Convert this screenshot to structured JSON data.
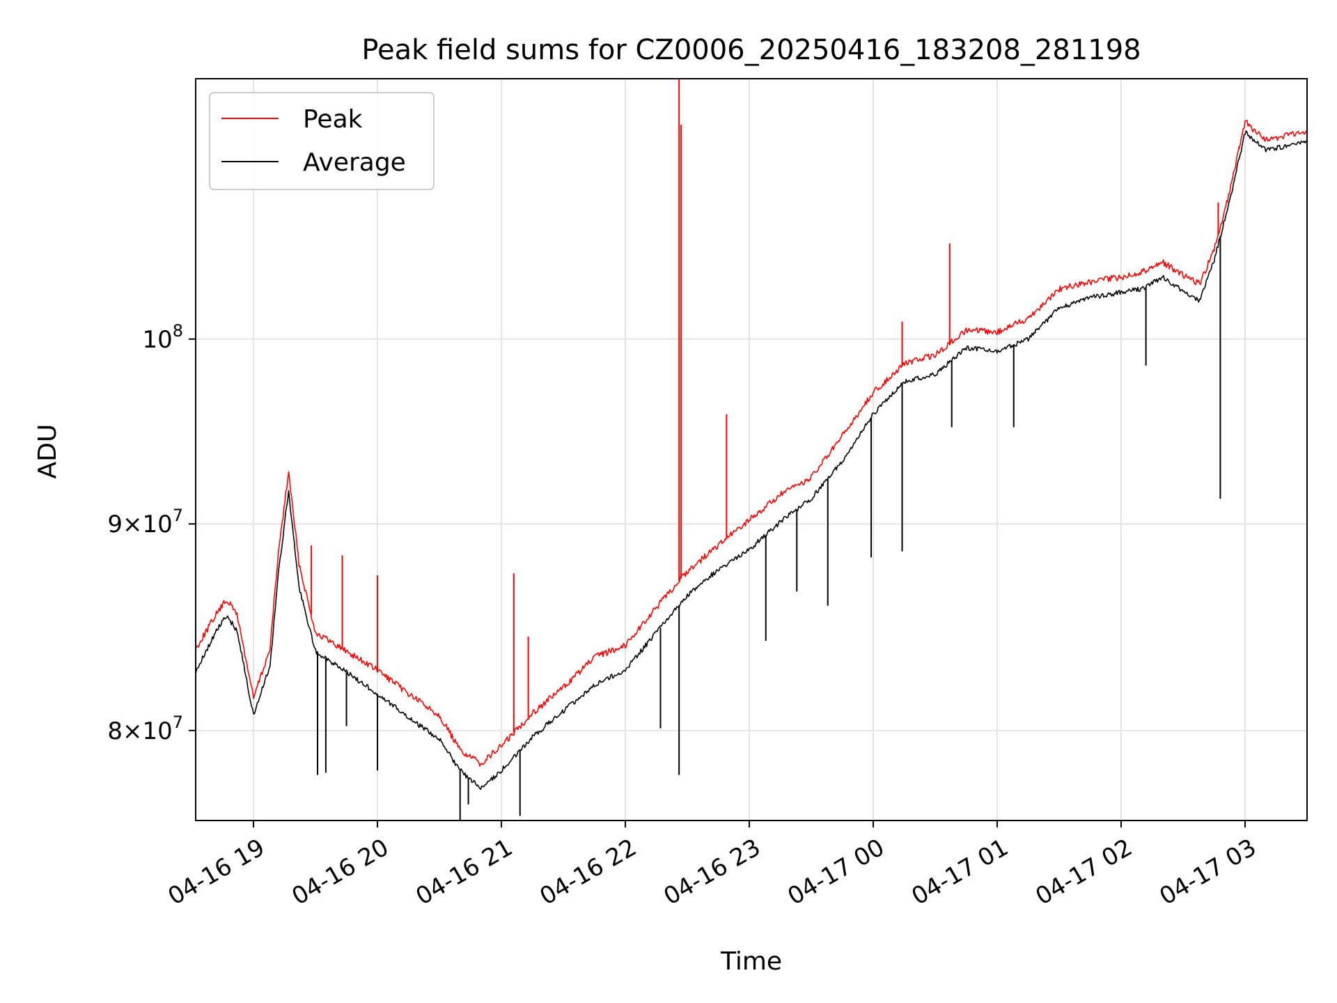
{
  "chart_data": {
    "type": "line",
    "title": "Peak field sums for CZ0006_20250416_183208_281198",
    "xlabel": "Time",
    "ylabel": "ADU",
    "yscale": "log",
    "xlim": [
      "2025-04-16 18:32",
      "2025-04-17 03:30"
    ],
    "ylim": [
      76000000,
      116000000
    ],
    "grid": true,
    "legend_position": "top-left",
    "x_ticks": [
      {
        "time": "2025-04-16 19:00",
        "label": "04-16 19"
      },
      {
        "time": "2025-04-16 20:00",
        "label": "04-16 20"
      },
      {
        "time": "2025-04-16 21:00",
        "label": "04-16 21"
      },
      {
        "time": "2025-04-16 22:00",
        "label": "04-16 22"
      },
      {
        "time": "2025-04-16 23:00",
        "label": "04-16 23"
      },
      {
        "time": "2025-04-17 00:00",
        "label": "04-17 00"
      },
      {
        "time": "2025-04-17 01:00",
        "label": "04-17 01"
      },
      {
        "time": "2025-04-17 02:00",
        "label": "04-17 02"
      },
      {
        "time": "2025-04-17 03:00",
        "label": "04-17 03"
      }
    ],
    "y_ticks": [
      {
        "value": 80000000,
        "mantissa": "8",
        "base": "10",
        "exp": "7"
      },
      {
        "value": 90000000,
        "mantissa": "9",
        "base": "10",
        "exp": "7"
      },
      {
        "value": 100000000,
        "mantissa": "",
        "base": "10",
        "exp": "8"
      }
    ],
    "series": [
      {
        "name": "Peak",
        "color": "#ff0000",
        "points": [
          [
            "2025-04-16 18:32",
            83800000
          ],
          [
            "2025-04-16 18:42",
            85500000
          ],
          [
            "2025-04-16 18:47",
            86200000
          ],
          [
            "2025-04-16 18:52",
            85500000
          ],
          [
            "2025-04-16 19:00",
            81500000
          ],
          [
            "2025-04-16 19:08",
            83800000
          ],
          [
            "2025-04-16 19:12",
            88500000
          ],
          [
            "2025-04-16 19:17",
            92700000
          ],
          [
            "2025-04-16 19:22",
            88000000
          ],
          [
            "2025-04-16 19:30",
            84600000
          ],
          [
            "2025-04-16 19:45",
            83700000
          ],
          [
            "2025-04-16 20:00",
            82800000
          ],
          [
            "2025-04-16 20:15",
            81700000
          ],
          [
            "2025-04-16 20:30",
            80700000
          ],
          [
            "2025-04-16 20:40",
            79100000
          ],
          [
            "2025-04-16 20:50",
            78500000
          ],
          [
            "2025-04-16 21:00",
            79300000
          ],
          [
            "2025-04-16 21:15",
            80800000
          ],
          [
            "2025-04-16 21:30",
            82000000
          ],
          [
            "2025-04-16 21:45",
            83400000
          ],
          [
            "2025-04-16 22:00",
            84000000
          ],
          [
            "2025-04-16 22:15",
            85800000
          ],
          [
            "2025-04-16 22:30",
            87600000
          ],
          [
            "2025-04-16 22:45",
            88900000
          ],
          [
            "2025-04-16 23:00",
            90200000
          ],
          [
            "2025-04-16 23:15",
            91500000
          ],
          [
            "2025-04-16 23:30",
            92400000
          ],
          [
            "2025-04-16 23:45",
            94600000
          ],
          [
            "2025-04-17 00:00",
            97000000
          ],
          [
            "2025-04-17 00:15",
            98600000
          ],
          [
            "2025-04-17 00:30",
            99100000
          ],
          [
            "2025-04-17 00:45",
            100500000
          ],
          [
            "2025-04-17 01:00",
            100400000
          ],
          [
            "2025-04-17 01:15",
            101200000
          ],
          [
            "2025-04-17 01:30",
            102900000
          ],
          [
            "2025-04-17 01:45",
            103300000
          ],
          [
            "2025-04-17 02:00",
            103600000
          ],
          [
            "2025-04-17 02:10",
            103900000
          ],
          [
            "2025-04-17 02:20",
            104500000
          ],
          [
            "2025-04-17 02:30",
            103700000
          ],
          [
            "2025-04-17 02:38",
            103200000
          ],
          [
            "2025-04-17 02:45",
            105200000
          ],
          [
            "2025-04-17 02:53",
            109000000
          ],
          [
            "2025-04-17 03:00",
            113200000
          ],
          [
            "2025-04-17 03:10",
            112000000
          ],
          [
            "2025-04-17 03:20",
            112300000
          ],
          [
            "2025-04-17 03:30",
            112500000
          ]
        ]
      },
      {
        "name": "Average",
        "color": "#000000",
        "points": [
          [
            "2025-04-16 18:32",
            82700000
          ],
          [
            "2025-04-16 18:42",
            84700000
          ],
          [
            "2025-04-16 18:47",
            85400000
          ],
          [
            "2025-04-16 18:52",
            84700000
          ],
          [
            "2025-04-16 19:00",
            80700000
          ],
          [
            "2025-04-16 19:08",
            83000000
          ],
          [
            "2025-04-16 19:12",
            87500000
          ],
          [
            "2025-04-16 19:17",
            91700000
          ],
          [
            "2025-04-16 19:22",
            86800000
          ],
          [
            "2025-04-16 19:30",
            83700000
          ],
          [
            "2025-04-16 19:45",
            82700000
          ],
          [
            "2025-04-16 20:00",
            81700000
          ],
          [
            "2025-04-16 20:15",
            80600000
          ],
          [
            "2025-04-16 20:30",
            79600000
          ],
          [
            "2025-04-16 20:40",
            78200000
          ],
          [
            "2025-04-16 20:50",
            77400000
          ],
          [
            "2025-04-16 21:00",
            78200000
          ],
          [
            "2025-04-16 21:15",
            79700000
          ],
          [
            "2025-04-16 21:30",
            80900000
          ],
          [
            "2025-04-16 21:45",
            82100000
          ],
          [
            "2025-04-16 22:00",
            82800000
          ],
          [
            "2025-04-16 22:15",
            84600000
          ],
          [
            "2025-04-16 22:30",
            86400000
          ],
          [
            "2025-04-16 22:45",
            87700000
          ],
          [
            "2025-04-16 23:00",
            88700000
          ],
          [
            "2025-04-16 23:15",
            90100000
          ],
          [
            "2025-04-16 23:30",
            91300000
          ],
          [
            "2025-04-16 23:45",
            93300000
          ],
          [
            "2025-04-17 00:00",
            95800000
          ],
          [
            "2025-04-17 00:15",
            97600000
          ],
          [
            "2025-04-17 00:30",
            98000000
          ],
          [
            "2025-04-17 00:45",
            99500000
          ],
          [
            "2025-04-17 01:00",
            99300000
          ],
          [
            "2025-04-17 01:15",
            100000000
          ],
          [
            "2025-04-17 01:30",
            101800000
          ],
          [
            "2025-04-17 01:45",
            102400000
          ],
          [
            "2025-04-17 02:00",
            102700000
          ],
          [
            "2025-04-17 02:10",
            102900000
          ],
          [
            "2025-04-17 02:20",
            103600000
          ],
          [
            "2025-04-17 02:30",
            102800000
          ],
          [
            "2025-04-17 02:38",
            102200000
          ],
          [
            "2025-04-17 02:45",
            104600000
          ],
          [
            "2025-04-17 02:53",
            108500000
          ],
          [
            "2025-04-17 03:00",
            112500000
          ],
          [
            "2025-04-17 03:10",
            111400000
          ],
          [
            "2025-04-17 03:20",
            111600000
          ],
          [
            "2025-04-17 03:30",
            111900000
          ]
        ]
      }
    ],
    "spikes": [
      {
        "series": "Peak",
        "time": "2025-04-16 19:28",
        "value": 88900000
      },
      {
        "series": "Peak",
        "time": "2025-04-16 19:43",
        "value": 88400000
      },
      {
        "series": "Peak",
        "time": "2025-04-16 20:00",
        "value": 87400000
      },
      {
        "series": "Peak",
        "time": "2025-04-16 21:06",
        "value": 87500000
      },
      {
        "series": "Peak",
        "time": "2025-04-16 21:13",
        "value": 84400000
      },
      {
        "series": "Peak",
        "time": "2025-04-16 22:26",
        "value": 122000000
      },
      {
        "series": "Peak",
        "time": "2025-04-16 22:27",
        "value": 113000000
      },
      {
        "series": "Peak",
        "time": "2025-04-16 22:49",
        "value": 95800000
      },
      {
        "series": "Peak",
        "time": "2025-04-17 00:14",
        "value": 101000000
      },
      {
        "series": "Peak",
        "time": "2025-04-17 00:37",
        "value": 105600000
      },
      {
        "series": "Peak",
        "time": "2025-04-17 02:47",
        "value": 108100000
      },
      {
        "series": "Peak",
        "time": "2025-04-17 02:57",
        "value": 111600000
      },
      {
        "series": "Average",
        "time": "2025-04-16 19:31",
        "value": 78000000
      },
      {
        "series": "Average",
        "time": "2025-04-16 19:35",
        "value": 78100000
      },
      {
        "series": "Average",
        "time": "2025-04-16 19:45",
        "value": 80200000
      },
      {
        "series": "Average",
        "time": "2025-04-16 20:00",
        "value": 78200000
      },
      {
        "series": "Average",
        "time": "2025-04-16 20:40",
        "value": 76000000
      },
      {
        "series": "Average",
        "time": "2025-04-16 20:44",
        "value": 76700000
      },
      {
        "series": "Average",
        "time": "2025-04-16 21:09",
        "value": 76200000
      },
      {
        "series": "Average",
        "time": "2025-04-16 22:17",
        "value": 80100000
      },
      {
        "series": "Average",
        "time": "2025-04-16 22:26",
        "value": 78000000
      },
      {
        "series": "Average",
        "time": "2025-04-16 23:08",
        "value": 84200000
      },
      {
        "series": "Average",
        "time": "2025-04-16 23:23",
        "value": 86600000
      },
      {
        "series": "Average",
        "time": "2025-04-16 23:38",
        "value": 85900000
      },
      {
        "series": "Average",
        "time": "2025-04-16 23:59",
        "value": 88300000
      },
      {
        "series": "Average",
        "time": "2025-04-17 00:14",
        "value": 88600000
      },
      {
        "series": "Average",
        "time": "2025-04-17 00:38",
        "value": 95100000
      },
      {
        "series": "Average",
        "time": "2025-04-17 01:08",
        "value": 95100000
      },
      {
        "series": "Average",
        "time": "2025-04-17 02:12",
        "value": 98500000
      },
      {
        "series": "Average",
        "time": "2025-04-17 02:48",
        "value": 91300000
      }
    ]
  }
}
